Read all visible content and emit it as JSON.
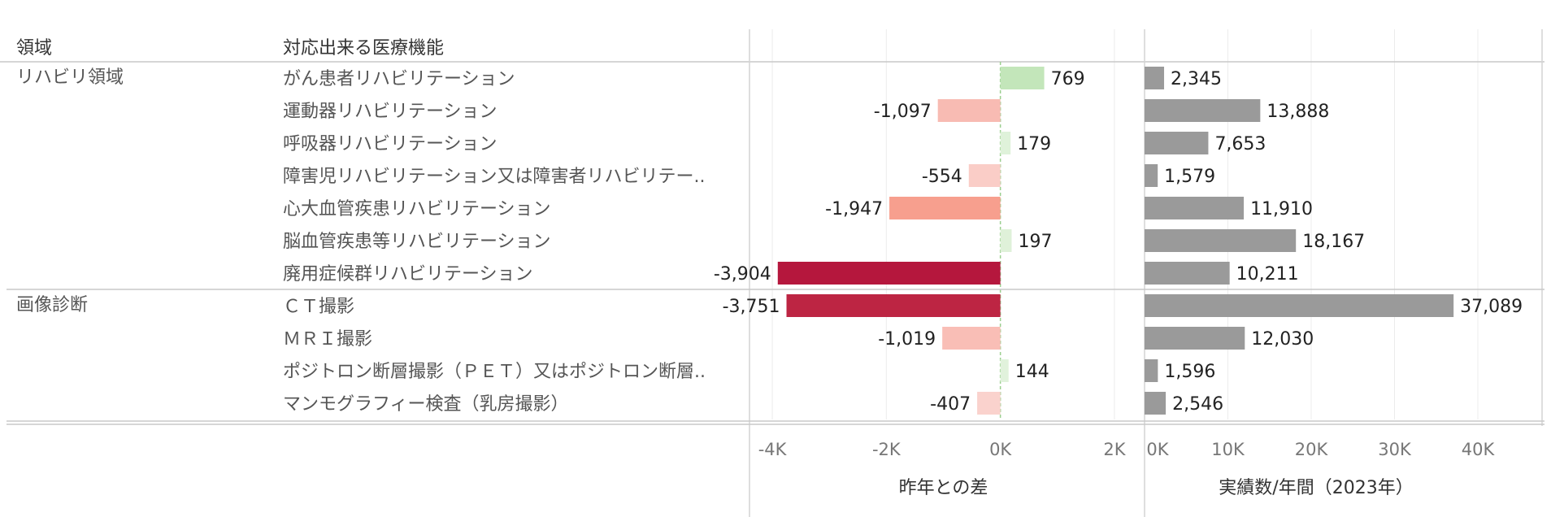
{
  "chart_data": {
    "type": "table",
    "headers": {
      "area": "領域",
      "function": "対応出来る医療機能"
    },
    "groups": [
      {
        "name": "リハビリ領域",
        "rows": [
          {
            "label": "がん患者リハビリテーション",
            "diff": 769,
            "diff_label": "769",
            "actual": 2345,
            "actual_label": "2,345"
          },
          {
            "label": "運動器リハビリテーション",
            "diff": -1097,
            "diff_label": "-1,097",
            "actual": 13888,
            "actual_label": "13,888"
          },
          {
            "label": "呼吸器リハビリテーション",
            "diff": 179,
            "diff_label": "179",
            "actual": 7653,
            "actual_label": "7,653"
          },
          {
            "label": "障害児リハビリテーション又は障害者リハビリテー..",
            "diff": -554,
            "diff_label": "-554",
            "actual": 1579,
            "actual_label": "1,579"
          },
          {
            "label": "心大血管疾患リハビリテーション",
            "diff": -1947,
            "diff_label": "-1,947",
            "actual": 11910,
            "actual_label": "11,910"
          },
          {
            "label": "脳血管疾患等リハビリテーション",
            "diff": 197,
            "diff_label": "197",
            "actual": 18167,
            "actual_label": "18,167"
          },
          {
            "label": "廃用症候群リハビリテーション",
            "diff": -3904,
            "diff_label": "-3,904",
            "actual": 10211,
            "actual_label": "10,211"
          }
        ]
      },
      {
        "name": "画像診断",
        "rows": [
          {
            "label": "ＣＴ撮影",
            "diff": -3751,
            "diff_label": "-3,751",
            "actual": 37089,
            "actual_label": "37,089"
          },
          {
            "label": "ＭＲＩ撮影",
            "diff": -1019,
            "diff_label": "-1,019",
            "actual": 12030,
            "actual_label": "12,030"
          },
          {
            "label": "ポジトロン断層撮影（ＰＥＴ）又はポジトロン断層..",
            "diff": 144,
            "diff_label": "144",
            "actual": 1596,
            "actual_label": "1,596"
          },
          {
            "label": "マンモグラフィー検査（乳房撮影）",
            "diff": -407,
            "diff_label": "-407",
            "actual": 2546,
            "actual_label": "2,546"
          }
        ]
      }
    ],
    "diff_axis": {
      "title": "昨年との差",
      "range": [
        -4400,
        2500
      ],
      "ticks": [
        -4000,
        -2000,
        0,
        2000
      ],
      "tick_labels": [
        "-4K",
        "-2K",
        "0K",
        "2K"
      ]
    },
    "actual_axis": {
      "title": "実績数/年間（2023年）",
      "range": [
        0,
        48000
      ],
      "ticks": [
        0,
        10000,
        20000,
        30000,
        40000
      ],
      "tick_labels": [
        "0K",
        "10K",
        "20K",
        "30K",
        "40K"
      ]
    },
    "colors": {
      "positive_scale": [
        "#e8f5e4",
        "#b8e2ae"
      ],
      "negative_scale": [
        "#fbe0dc",
        "#f8b4ab",
        "#f68a70",
        "#b5173d"
      ],
      "actual_bar": "#9a9a9a",
      "zero_line": "#9bcf8f"
    }
  }
}
